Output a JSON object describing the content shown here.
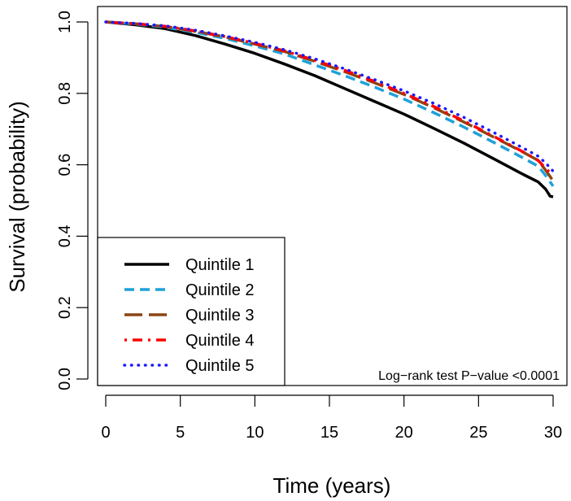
{
  "chart_data": {
    "type": "line",
    "title": "",
    "xlabel": "Time (years)",
    "ylabel": "Survival (probability)",
    "xlim": [
      0,
      30
    ],
    "ylim": [
      0,
      1
    ],
    "x_ticks": [
      0,
      5,
      10,
      15,
      20,
      25,
      30
    ],
    "y_ticks": [
      0.0,
      0.2,
      0.4,
      0.6,
      0.8,
      1.0
    ],
    "x_tick_labels": [
      "0",
      "5",
      "10",
      "15",
      "20",
      "25",
      "30"
    ],
    "y_tick_labels": [
      "0.0",
      "0.2",
      "0.4",
      "0.6",
      "0.8",
      "1.0"
    ],
    "grid": false,
    "legend_position": "bottom-left",
    "annotation": "Log−rank test P−value <0.0001",
    "series": [
      {
        "name": "Quintile 1",
        "color": "#000000",
        "line_style": "solid",
        "x": [
          0,
          2,
          4,
          6,
          8,
          10,
          12,
          14,
          16,
          18,
          20,
          22,
          24,
          26,
          28,
          29,
          29.5,
          29.8,
          30
        ],
        "y": [
          1.0,
          0.992,
          0.981,
          0.962,
          0.938,
          0.912,
          0.882,
          0.85,
          0.814,
          0.778,
          0.742,
          0.702,
          0.661,
          0.617,
          0.573,
          0.552,
          0.532,
          0.512,
          0.51
        ]
      },
      {
        "name": "Quintile 2",
        "color": "#1fa1d9",
        "line_style": "dashed",
        "x": [
          0,
          2,
          4,
          6,
          8,
          10,
          12,
          14,
          16,
          18,
          20,
          22,
          24,
          26,
          28,
          29,
          29.5,
          30
        ],
        "y": [
          1.0,
          0.994,
          0.985,
          0.971,
          0.954,
          0.933,
          0.91,
          0.88,
          0.85,
          0.818,
          0.784,
          0.746,
          0.706,
          0.663,
          0.619,
          0.596,
          0.57,
          0.54
        ]
      },
      {
        "name": "Quintile 3",
        "color": "#8b4513",
        "line_style": "longdash",
        "x": [
          0,
          2,
          4,
          6,
          8,
          10,
          12,
          14,
          16,
          18,
          20,
          22,
          24,
          26,
          28,
          29,
          29.5,
          30
        ],
        "y": [
          1.0,
          0.995,
          0.987,
          0.974,
          0.958,
          0.938,
          0.917,
          0.89,
          0.861,
          0.83,
          0.797,
          0.76,
          0.72,
          0.678,
          0.635,
          0.612,
          0.585,
          0.555
        ]
      },
      {
        "name": "Quintile 4",
        "color": "#ff0000",
        "line_style": "dotdash",
        "x": [
          0,
          2,
          4,
          6,
          8,
          10,
          12,
          14,
          16,
          18,
          20,
          22,
          24,
          26,
          28,
          29,
          29.5,
          30
        ],
        "y": [
          1.0,
          0.995,
          0.988,
          0.975,
          0.959,
          0.94,
          0.919,
          0.893,
          0.865,
          0.834,
          0.8,
          0.763,
          0.723,
          0.68,
          0.636,
          0.612,
          0.59,
          0.57
        ]
      },
      {
        "name": "Quintile 5",
        "color": "#1a1aff",
        "line_style": "dotted",
        "x": [
          0,
          2,
          4,
          6,
          8,
          10,
          12,
          14,
          16,
          18,
          20,
          22,
          24,
          26,
          28,
          29,
          29.5,
          30
        ],
        "y": [
          1.0,
          0.996,
          0.989,
          0.977,
          0.961,
          0.943,
          0.922,
          0.897,
          0.869,
          0.839,
          0.807,
          0.772,
          0.733,
          0.691,
          0.647,
          0.624,
          0.605,
          0.582
        ]
      }
    ]
  }
}
